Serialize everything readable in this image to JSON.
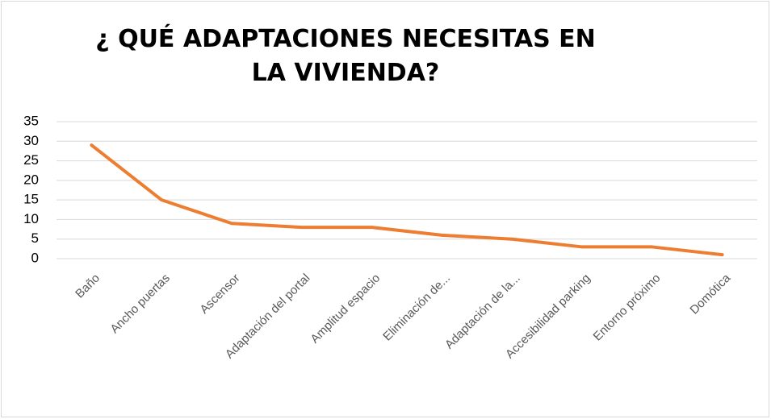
{
  "chart_data": {
    "type": "line",
    "title": "¿ QUÉ ADAPTACIONES NECESITAS EN LA VIVIENDA?",
    "categories": [
      "Baño",
      "Ancho puertas",
      "Ascensor",
      "Adaptación del portal",
      "Amplitud espacio",
      "Eliminación de...",
      "Adaptación de la...",
      "Accesibilidad parking",
      "Entorno próximo",
      "Domótica"
    ],
    "values": [
      29,
      15,
      9,
      8,
      8,
      6,
      5,
      3,
      3,
      1
    ],
    "color": "#ed7d31",
    "ylim": [
      0,
      35
    ],
    "yticks": [
      0,
      5,
      10,
      15,
      20,
      25,
      30,
      35
    ],
    "grid": true
  }
}
